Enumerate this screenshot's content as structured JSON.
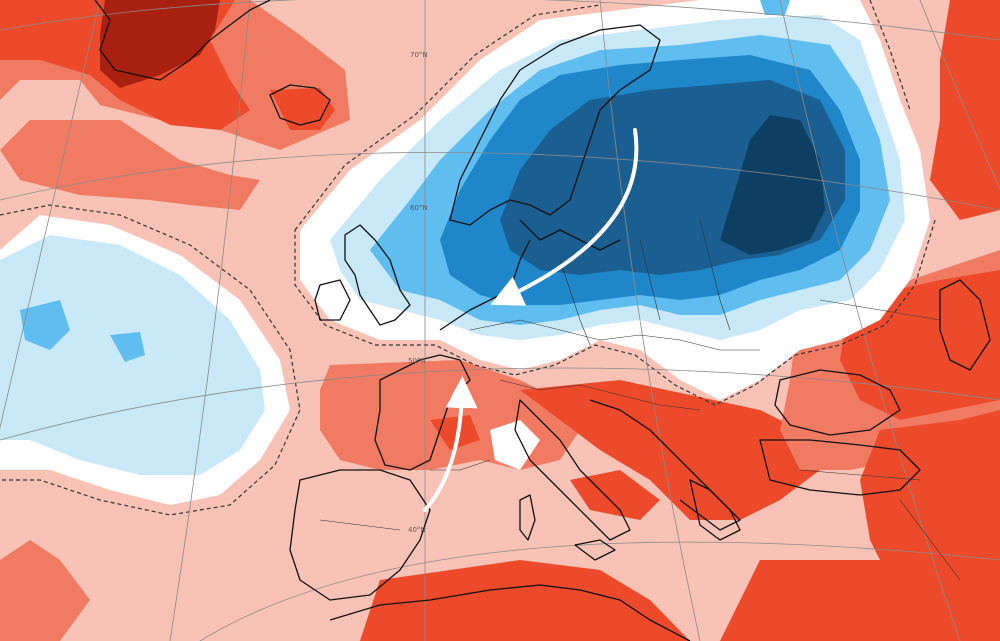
{
  "map": {
    "latitude_labels": [
      "70°N",
      "60°N",
      "50°N",
      "40°N"
    ],
    "colors": {
      "strong_warm": "#ec4a2a",
      "medium_warm": "#f17a63",
      "light_warm": "#f8c3b6",
      "neutral": "#ffffff",
      "light_cold": "#c9e9f8",
      "medium_cold": "#5fbdef",
      "strong_cold": "#1f86c9",
      "very_strong_cold": "#1b5f92",
      "extreme_cold": "#0e3f63",
      "extreme_warm": "#a8200f",
      "coastline": "#111111",
      "graticule": "#8a8a8a",
      "flow_arrow": "#ffffff"
    },
    "arrows": [
      {
        "name": "cold-flow-arrow",
        "direction": "north-east to west"
      },
      {
        "name": "warm-flow-arrow",
        "direction": "south to north"
      }
    ]
  }
}
